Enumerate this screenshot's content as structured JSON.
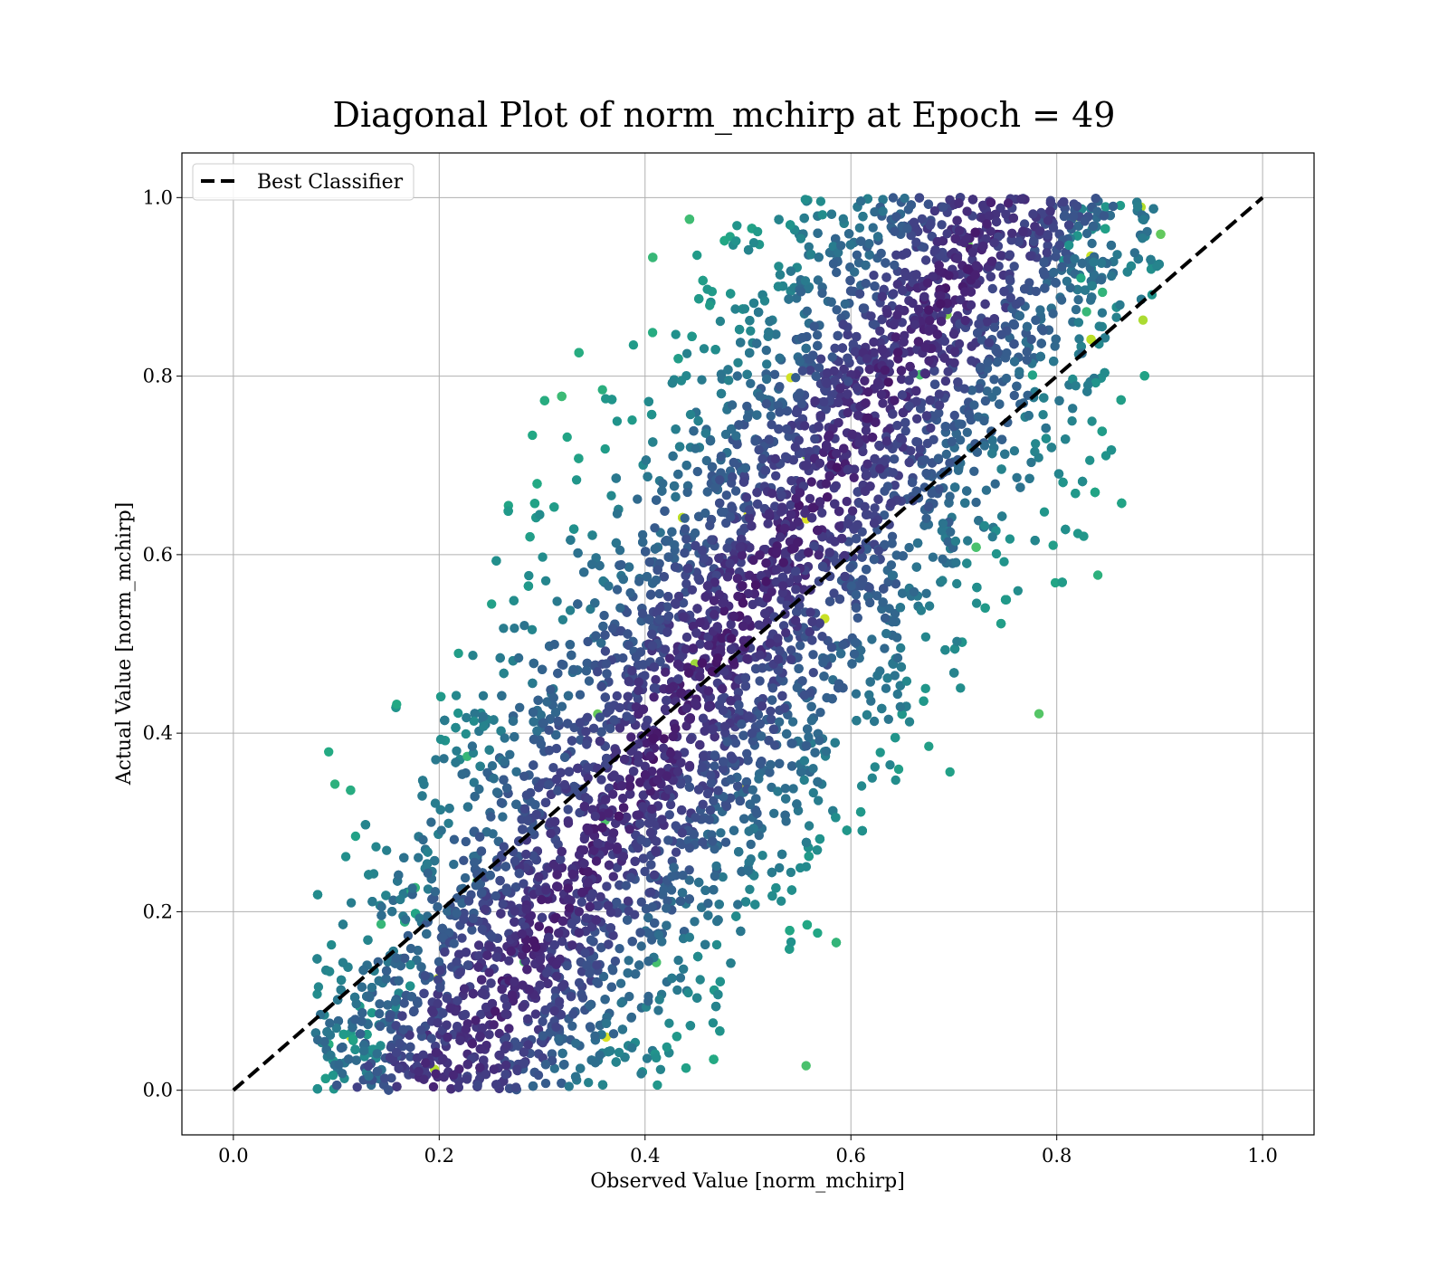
{
  "chart_data": {
    "type": "scatter",
    "title": "Diagonal Plot of norm_mchirp at Epoch = 49",
    "xlabel": "Observed Value [norm_mchirp]",
    "ylabel": "Actual Value [norm_mchirp]",
    "xlim": [
      -0.05,
      1.05
    ],
    "ylim": [
      -0.05,
      1.05
    ],
    "xticks": [
      0.0,
      0.2,
      0.4,
      0.6,
      0.8,
      1.0
    ],
    "yticks": [
      0.0,
      0.2,
      0.4,
      0.6,
      0.8,
      1.0
    ],
    "xtick_labels": [
      "0.0",
      "0.2",
      "0.4",
      "0.6",
      "0.8",
      "1.0"
    ],
    "ytick_labels": [
      "0.0",
      "0.2",
      "0.4",
      "0.6",
      "0.8",
      "1.0"
    ],
    "grid": true,
    "colormap": "viridis",
    "legend": {
      "placement": "top-left",
      "entries": [
        {
          "label": "Best Classifier",
          "style": "dashed",
          "color": "#000000"
        }
      ]
    },
    "reference_line": {
      "name": "Best Classifier",
      "x": [
        0.0,
        1.0
      ],
      "y": [
        0.0,
        1.0
      ],
      "color": "#000000",
      "style": "dashed"
    },
    "scatter_series": {
      "point_count_approx": 9000,
      "x_range": [
        0.08,
        0.9
      ],
      "y_range": [
        0.0,
        1.0
      ],
      "trend": "observed ≈ 0.2 + 0.55·actual, spread ≈ ±0.2",
      "dense_core_color": "#440154",
      "edge_color": "#21918c",
      "outlier_color": "#b5de2b"
    }
  }
}
